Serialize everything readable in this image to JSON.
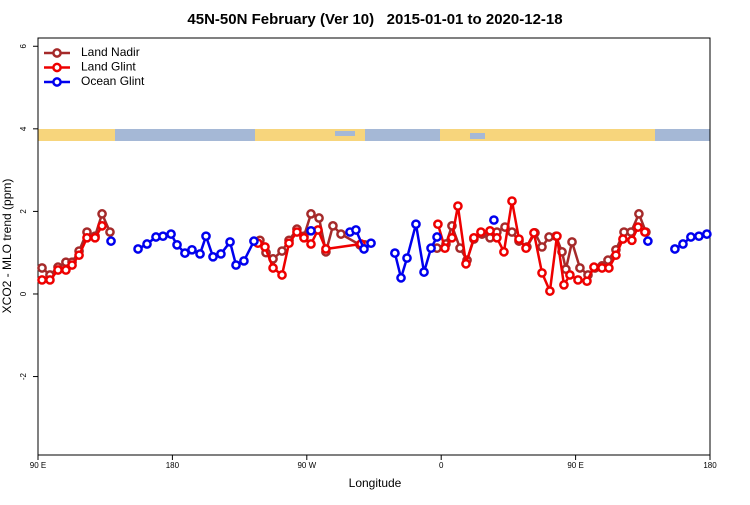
{
  "chart_data": {
    "type": "line",
    "title": "45N-50N February (Ver 10)   2015-01-01 to 2020-12-18",
    "xlabel": "Longitude",
    "ylabel": "XCO2 - MLO trend (ppm)",
    "xlim": [
      90,
      540
    ],
    "xticks": [
      {
        "value": 90,
        "label": "90 E"
      },
      180,
      {
        "value": 270,
        "label": "90 W"
      },
      {
        "value": 360,
        "label": "0"
      },
      {
        "value": 450,
        "label": "90 E"
      },
      {
        "value": 540,
        "label": "180"
      }
    ],
    "ylim": [
      -3.9,
      6.2
    ],
    "yticks": [
      -2,
      0,
      2,
      4,
      6
    ],
    "legend": "top-left",
    "series": [
      {
        "name": "Land Nadir",
        "color": "#a52a2a",
        "x": [
          92.7,
          98.0,
          103.4,
          108.7,
          112.8,
          117.5,
          122.8,
          128.2,
          132.9,
          138.2,
          null,
          238.6,
          242.7,
          247.4,
          253.4,
          258.1,
          263.4,
          268.1,
          272.8,
          278.2,
          282.8,
          287.5,
          292.9,
          305.6,
          308.9,
          null,
          357.2,
          363.2,
          367.2,
          372.6,
          377.3,
          381.9,
          387.3,
          392.7,
          397.3,
          402.7,
          407.4,
          412.1,
          417.4,
          422.8,
          427.5,
          432.2,
          436.9,
          440.9,
          443.5,
          447.6,
          452.9,
          458.3,
          463.0,
          467.7,
          471.7,
          477.0,
          482.4,
          487.1,
          492.4,
          497.1
        ],
        "values": [
          0.63,
          0.46,
          0.65,
          0.77,
          0.77,
          1.04,
          1.5,
          1.4,
          1.94,
          1.5,
          null,
          1.3,
          1.0,
          0.85,
          1.04,
          1.3,
          1.57,
          1.4,
          1.94,
          1.84,
          1.02,
          1.65,
          1.45,
          1.19,
          1.19,
          null,
          1.11,
          1.21,
          1.65,
          1.11,
          0.82,
          1.33,
          1.45,
          1.36,
          1.5,
          1.62,
          1.5,
          1.28,
          1.14,
          1.48,
          1.14,
          1.38,
          1.4,
          1.02,
          0.6,
          1.26,
          0.63,
          0.46,
          0.63,
          0.68,
          0.82,
          1.07,
          1.5,
          1.5,
          1.94,
          1.5
        ]
      },
      {
        "name": "Land Glint",
        "color": "#ee0000",
        "x": [
          92.7,
          98.0,
          103.4,
          108.7,
          112.8,
          117.5,
          122.8,
          128.2,
          132.9,
          null,
          237.3,
          242.0,
          247.4,
          253.4,
          258.1,
          263.4,
          268.1,
          272.8,
          277.5,
          282.8,
          306.3,
          null,
          357.8,
          362.5,
          367.2,
          371.2,
          376.6,
          381.9,
          386.6,
          392.7,
          397.3,
          402.0,
          407.4,
          412.1,
          416.8,
          422.1,
          427.5,
          432.8,
          437.5,
          442.2,
          446.2,
          451.6,
          457.6,
          462.3,
          467.7,
          472.3,
          477.0,
          481.7,
          487.7,
          491.8,
          496.4
        ],
        "values": [
          0.34,
          0.34,
          0.58,
          0.58,
          0.7,
          0.94,
          1.36,
          1.36,
          1.65,
          null,
          1.23,
          1.14,
          0.63,
          0.46,
          1.23,
          1.5,
          1.36,
          1.21,
          1.55,
          1.09,
          1.21,
          null,
          1.69,
          1.11,
          1.36,
          2.13,
          0.73,
          1.36,
          1.5,
          1.53,
          1.36,
          1.02,
          2.25,
          1.33,
          1.11,
          1.48,
          0.51,
          0.07,
          1.4,
          0.22,
          0.46,
          0.34,
          0.31,
          0.65,
          0.63,
          0.63,
          0.94,
          1.33,
          1.3,
          1.62,
          1.5
        ]
      },
      {
        "name": "Ocean Glint",
        "color": "#0000ee",
        "x": [
          138.9,
          null,
          157.0,
          163.0,
          169.0,
          173.7,
          179.1,
          183.1,
          188.4,
          193.1,
          198.5,
          202.5,
          207.2,
          212.5,
          218.6,
          222.6,
          227.9,
          234.6,
          null,
          272.8,
          null,
          298.9,
          302.9,
          308.3,
          313.0,
          null,
          329.0,
          333.1,
          337.1,
          343.1,
          348.5,
          353.2,
          357.2,
          null,
          395.3,
          null,
          498.4,
          null,
          516.5,
          521.9,
          527.2,
          532.6,
          537.9
        ],
        "values": [
          1.28,
          null,
          1.09,
          1.21,
          1.38,
          1.4,
          1.45,
          1.19,
          0.99,
          1.07,
          0.97,
          1.4,
          0.9,
          0.97,
          1.26,
          0.7,
          0.8,
          1.28,
          null,
          1.53,
          null,
          1.5,
          1.55,
          1.09,
          1.23,
          null,
          0.99,
          0.39,
          0.87,
          1.69,
          0.53,
          1.11,
          1.38,
          null,
          1.79,
          null,
          1.28,
          null,
          1.09,
          1.21,
          1.38,
          1.4,
          1.45
        ]
      }
    ]
  }
}
